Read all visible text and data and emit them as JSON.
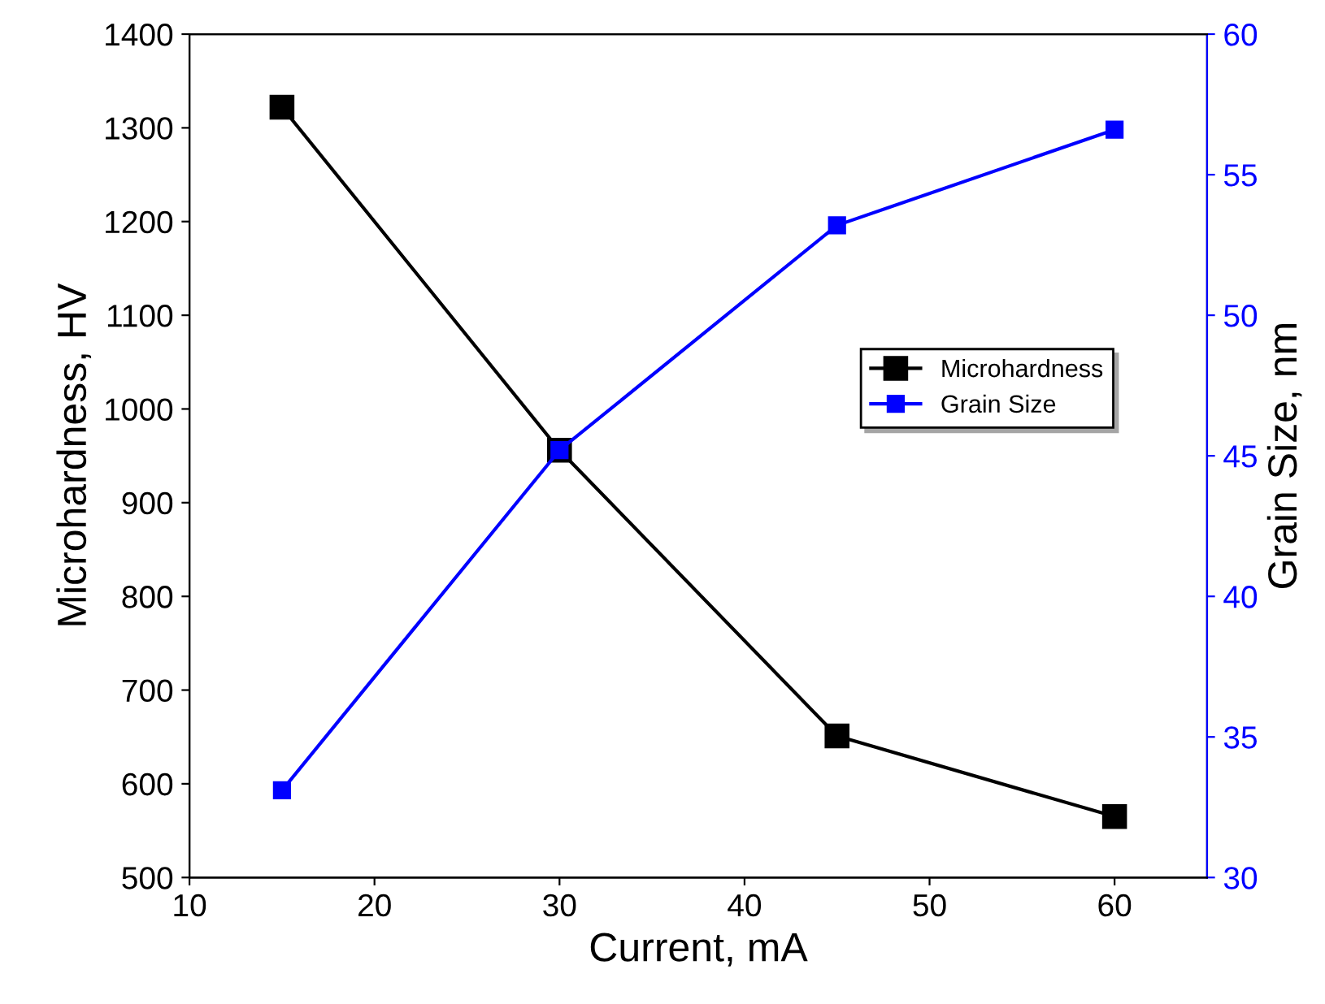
{
  "chart_data": {
    "type": "line",
    "xlabel": "Current, mA",
    "ylabel": "Microhardness, HV",
    "y2label": "Grain Size, nm",
    "x": [
      15,
      30,
      45,
      60
    ],
    "series": [
      {
        "name": "Microhardness",
        "color": "#000000",
        "values": [
          1322,
          956,
          651,
          565
        ]
      },
      {
        "name": "Grain Size",
        "color": "#0000ff",
        "axis": "y2",
        "values": [
          33.1,
          45.2,
          53.2,
          56.6
        ]
      }
    ],
    "xlim": [
      10,
      65
    ],
    "xticks": [
      10,
      20,
      30,
      40,
      50,
      60
    ],
    "ylim": [
      500,
      1400
    ],
    "yticks": [
      500,
      600,
      700,
      800,
      900,
      1000,
      1100,
      1200,
      1300,
      1400
    ],
    "y2lim": [
      30,
      60
    ],
    "y2ticks": [
      30,
      35,
      40,
      45,
      50,
      55,
      60
    ],
    "marker": "square",
    "line_style": "solid",
    "legend": "right",
    "grid": false
  }
}
